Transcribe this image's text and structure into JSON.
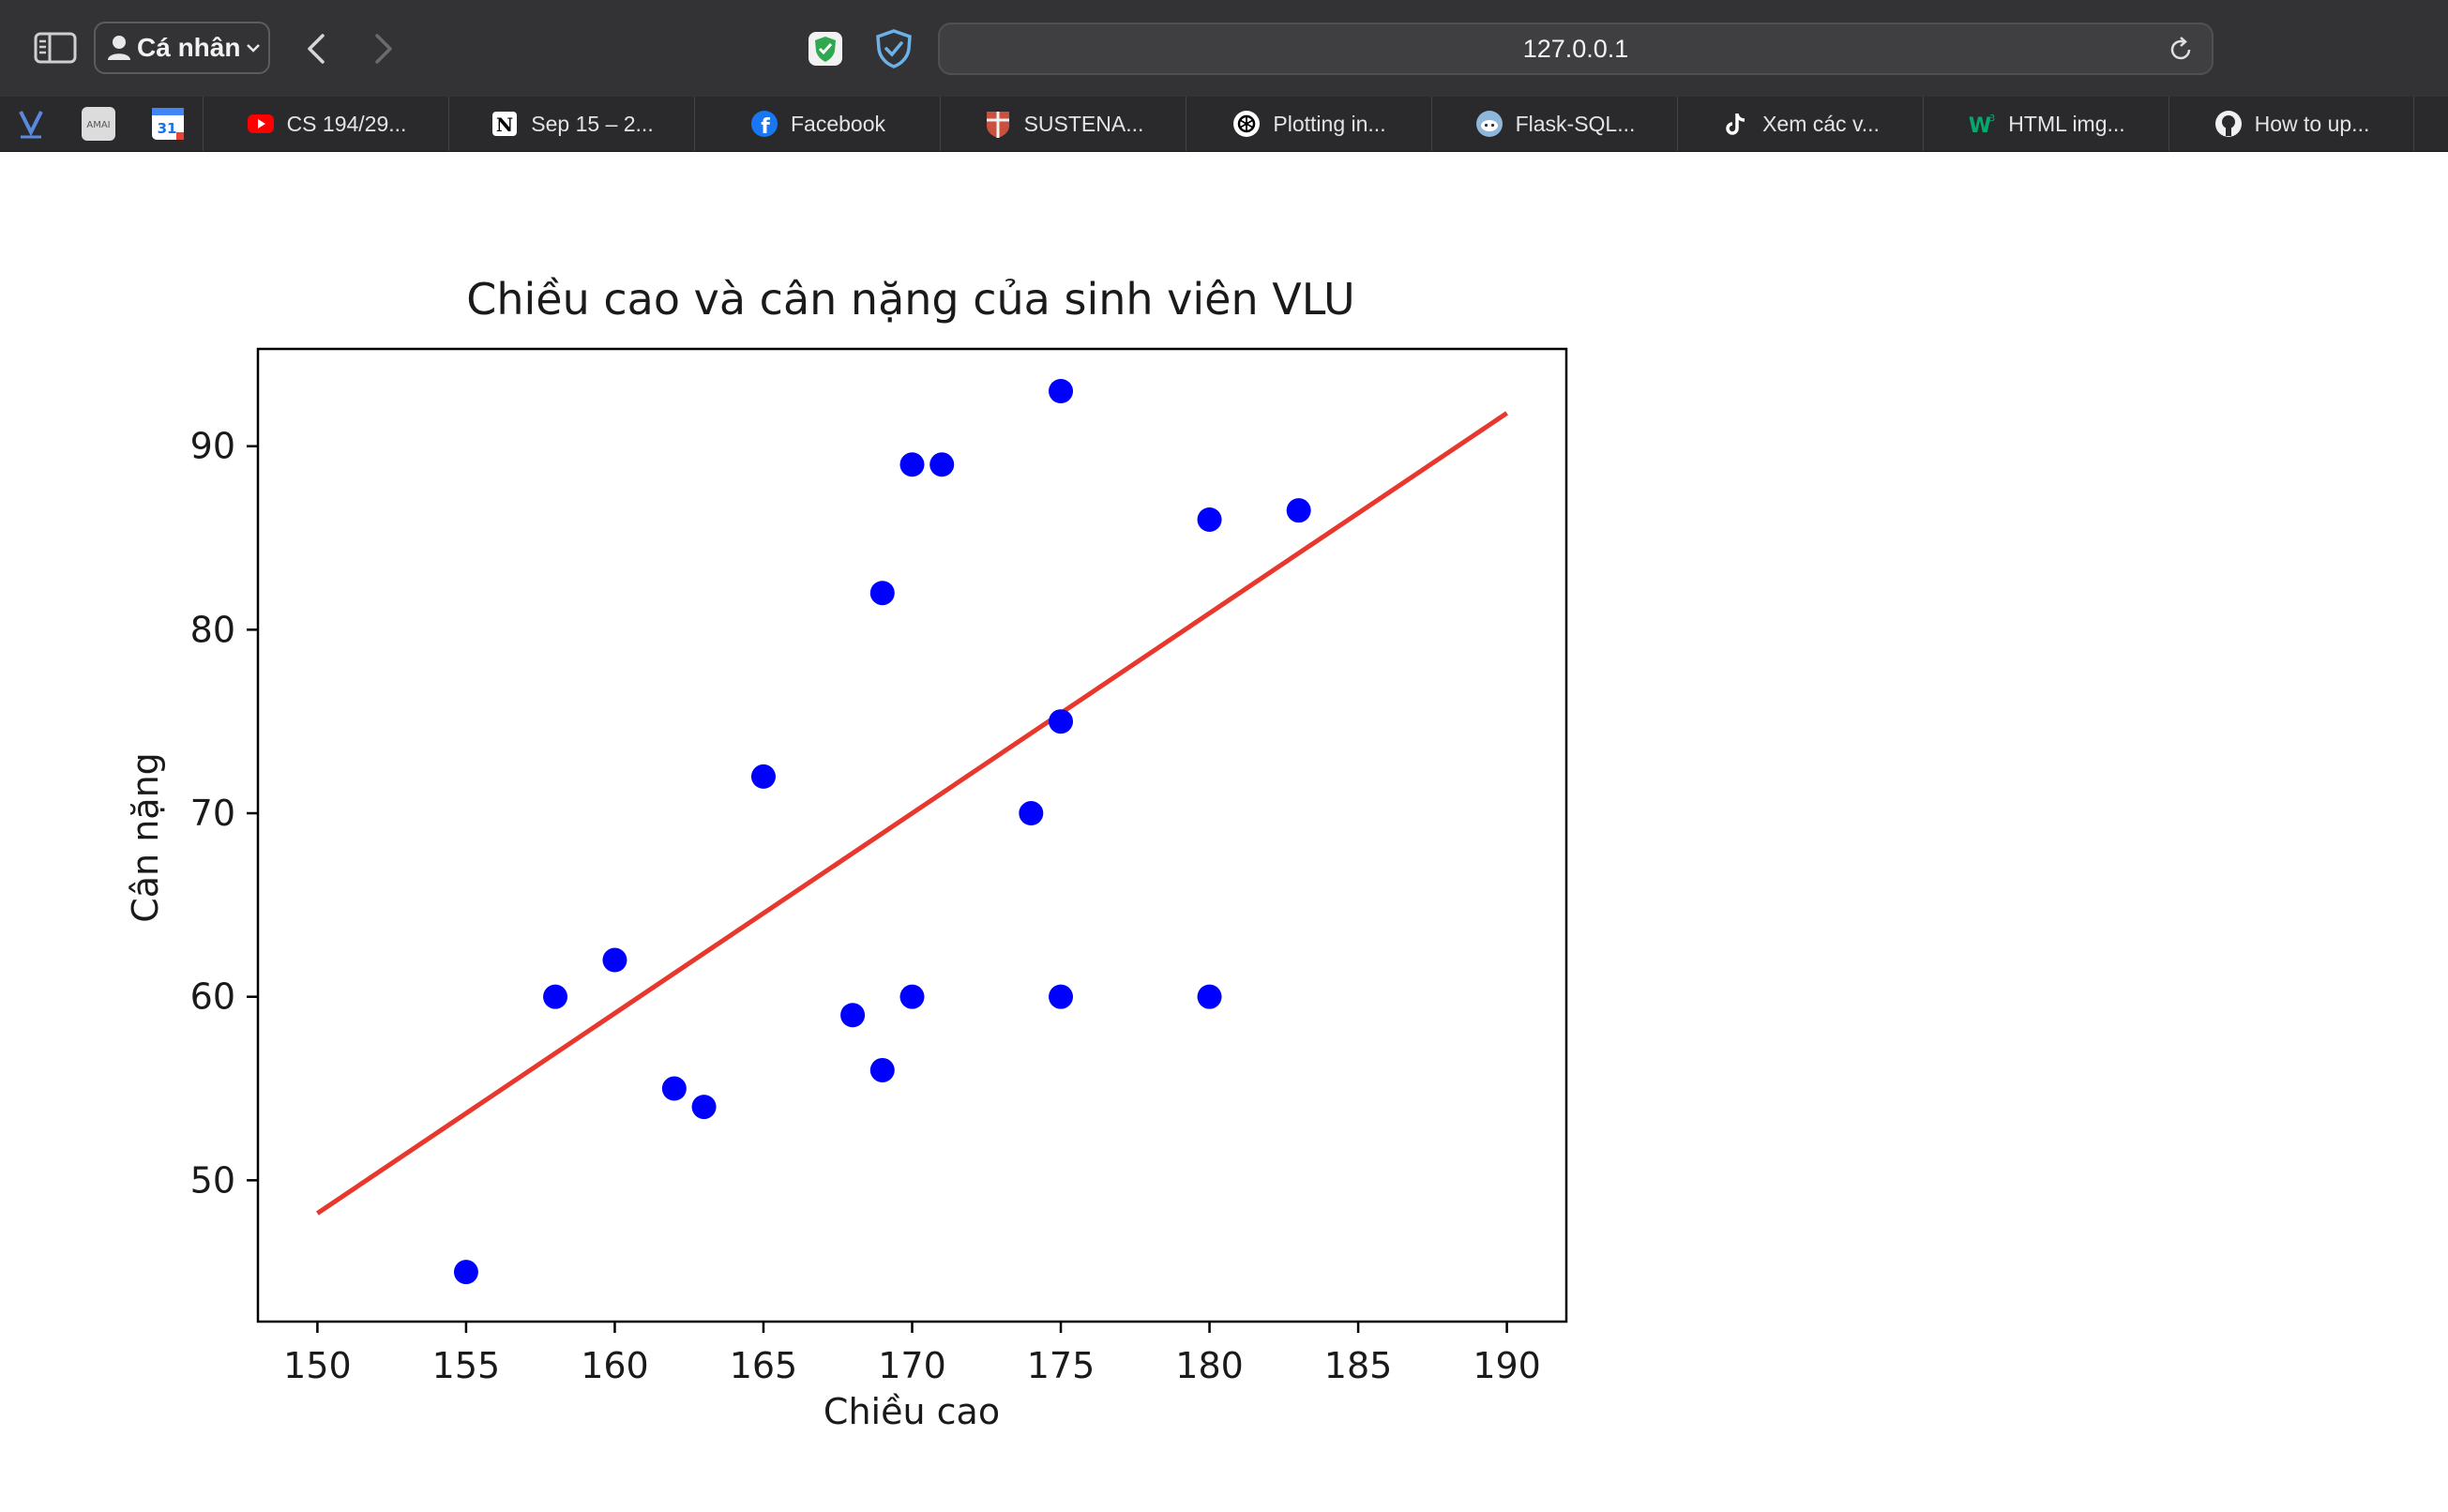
{
  "browser": {
    "profile_label": "Cá nhân",
    "url": "127.0.0.1"
  },
  "favorites": [
    {
      "label": "CS 194/29...",
      "icon": "youtube-icon"
    },
    {
      "label": "Sep 15 – 2...",
      "icon": "notion-icon"
    },
    {
      "label": "Facebook",
      "icon": "facebook-icon"
    },
    {
      "label": "SUSTENA...",
      "icon": "cambridge-icon"
    },
    {
      "label": "Plotting in...",
      "icon": "openai-icon"
    },
    {
      "label": "Flask-SQL...",
      "icon": "reddit-icon"
    },
    {
      "label": "Xem các v...",
      "icon": "tiktok-icon"
    },
    {
      "label": "HTML img...",
      "icon": "w3schools-icon"
    },
    {
      "label": "How to up...",
      "icon": "github-icon"
    }
  ],
  "favorite_icons": [
    "v-logo-icon",
    "amai-icon",
    "calendar-icon"
  ],
  "calendar_day": "31",
  "amai_text": "AMAI",
  "chart_data": {
    "type": "scatter",
    "title": "Chiều cao và cân nặng của sinh viên VLU",
    "xlabel": "Chiều cao",
    "ylabel": "Cân nặng",
    "xlim": [
      148,
      192
    ],
    "ylim": [
      42.3,
      95.3
    ],
    "xticks": [
      150,
      155,
      160,
      165,
      170,
      175,
      180,
      185,
      190
    ],
    "yticks": [
      50,
      60,
      70,
      80,
      90
    ],
    "grid": false,
    "point_color": "#0000ff",
    "line_color": "#e8372c",
    "points": [
      {
        "x": 155,
        "y": 45
      },
      {
        "x": 158,
        "y": 60
      },
      {
        "x": 160,
        "y": 62
      },
      {
        "x": 162,
        "y": 55
      },
      {
        "x": 163,
        "y": 54
      },
      {
        "x": 165,
        "y": 72
      },
      {
        "x": 168,
        "y": 59
      },
      {
        "x": 169,
        "y": 82
      },
      {
        "x": 169,
        "y": 56
      },
      {
        "x": 170,
        "y": 89
      },
      {
        "x": 170,
        "y": 60
      },
      {
        "x": 171,
        "y": 89
      },
      {
        "x": 174,
        "y": 70
      },
      {
        "x": 175,
        "y": 93
      },
      {
        "x": 175,
        "y": 75
      },
      {
        "x": 175,
        "y": 60
      },
      {
        "x": 180,
        "y": 86
      },
      {
        "x": 180,
        "y": 60
      },
      {
        "x": 183,
        "y": 86.5
      }
    ],
    "trend_line": {
      "x": [
        150,
        190
      ],
      "y": [
        48.2,
        91.8
      ]
    }
  }
}
